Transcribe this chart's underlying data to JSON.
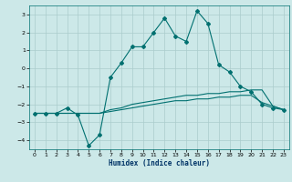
{
  "title": "",
  "xlabel": "Humidex (Indice chaleur)",
  "ylabel": "",
  "bg_color": "#cce8e8",
  "grid_color": "#aacccc",
  "line_color": "#007070",
  "xlim": [
    -0.5,
    23.5
  ],
  "ylim": [
    -4.5,
    3.5
  ],
  "yticks": [
    -4,
    -3,
    -2,
    -1,
    0,
    1,
    2,
    3
  ],
  "xticks": [
    0,
    1,
    2,
    3,
    4,
    5,
    6,
    7,
    8,
    9,
    10,
    11,
    12,
    13,
    14,
    15,
    16,
    17,
    18,
    19,
    20,
    21,
    22,
    23
  ],
  "series1_x": [
    0,
    1,
    2,
    3,
    4,
    5,
    6,
    7,
    8,
    9,
    10,
    11,
    12,
    13,
    14,
    15,
    16,
    17,
    18,
    19,
    20,
    21,
    22,
    23
  ],
  "series1_y": [
    -2.5,
    -2.5,
    -2.5,
    -2.2,
    -2.6,
    -4.3,
    -3.7,
    -0.5,
    0.3,
    1.2,
    1.2,
    2.0,
    2.8,
    1.8,
    1.5,
    3.2,
    2.5,
    0.2,
    -0.2,
    -1.0,
    -1.3,
    -2.0,
    -2.2,
    -2.3
  ],
  "series2_x": [
    0,
    1,
    2,
    3,
    4,
    5,
    6,
    7,
    8,
    9,
    10,
    11,
    12,
    13,
    14,
    15,
    16,
    17,
    18,
    19,
    20,
    21,
    22,
    23
  ],
  "series2_y": [
    -2.5,
    -2.5,
    -2.5,
    -2.5,
    -2.5,
    -2.5,
    -2.5,
    -2.3,
    -2.2,
    -2.0,
    -1.9,
    -1.8,
    -1.7,
    -1.6,
    -1.5,
    -1.5,
    -1.4,
    -1.4,
    -1.3,
    -1.3,
    -1.2,
    -1.2,
    -2.1,
    -2.3
  ],
  "series3_x": [
    0,
    1,
    2,
    3,
    4,
    5,
    6,
    7,
    8,
    9,
    10,
    11,
    12,
    13,
    14,
    15,
    16,
    17,
    18,
    19,
    20,
    21,
    22,
    23
  ],
  "series3_y": [
    -2.5,
    -2.5,
    -2.5,
    -2.5,
    -2.5,
    -2.5,
    -2.5,
    -2.4,
    -2.3,
    -2.2,
    -2.1,
    -2.0,
    -1.9,
    -1.8,
    -1.8,
    -1.7,
    -1.7,
    -1.6,
    -1.6,
    -1.5,
    -1.5,
    -1.9,
    -2.1,
    -2.3
  ]
}
